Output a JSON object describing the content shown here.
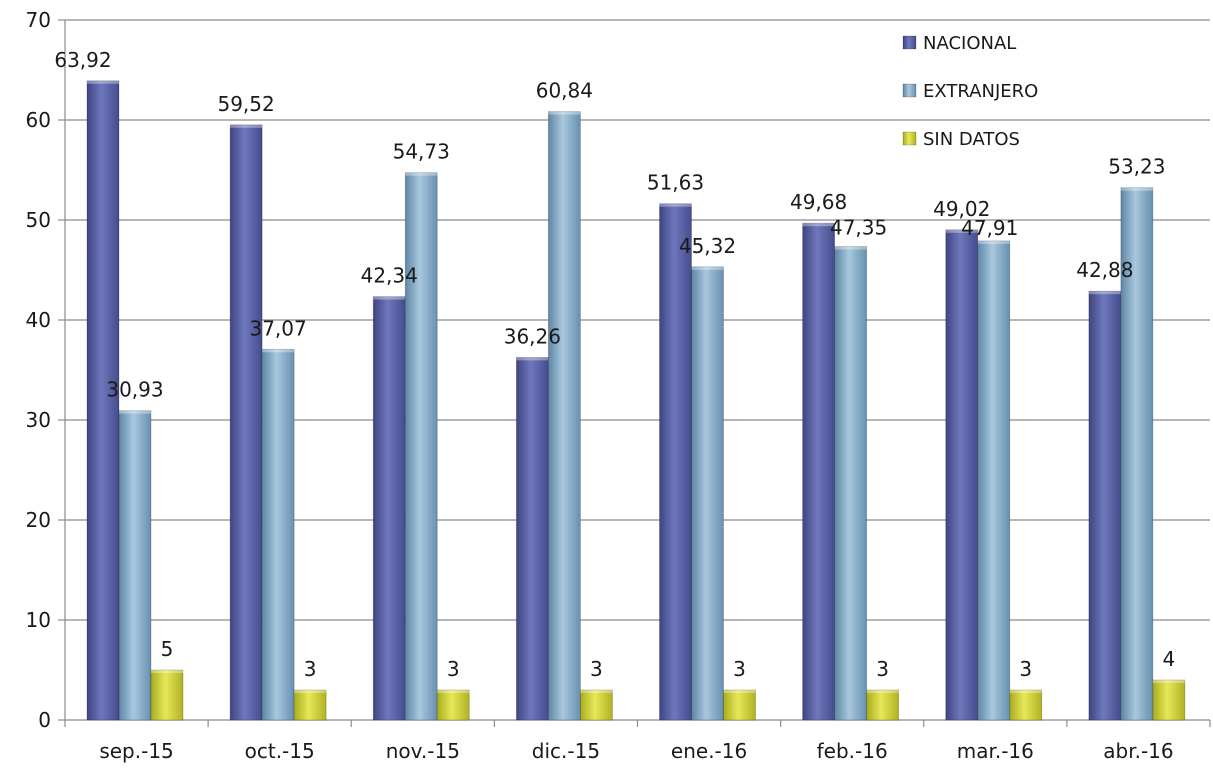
{
  "chart_data": {
    "type": "bar",
    "title": "",
    "xlabel": "",
    "ylabel": "",
    "ylim": [
      0,
      70
    ],
    "yticks": [
      0,
      10,
      20,
      30,
      40,
      50,
      60,
      70
    ],
    "grid": true,
    "legend_position": "top-right",
    "categories": [
      "sep.-15",
      "oct.-15",
      "nov.-15",
      "dic.-15",
      "ene.-16",
      "feb.-16",
      "mar.-16",
      "abr.-16"
    ],
    "series": [
      {
        "name": "NACIONAL",
        "color": "#5b63a6",
        "values": [
          63.92,
          59.52,
          42.34,
          36.26,
          51.63,
          49.68,
          49.02,
          42.88
        ],
        "labels": [
          "63,92",
          "59,52",
          "42,34",
          "36,26",
          "51,63",
          "49,68",
          "49,02",
          "42,88"
        ]
      },
      {
        "name": "EXTRANJERO",
        "color": "#7fa6c4",
        "values": [
          30.93,
          37.07,
          54.73,
          60.84,
          45.32,
          47.35,
          47.91,
          53.23
        ],
        "labels": [
          "30,93",
          "37,07",
          "54,73",
          "60,84",
          "45,32",
          "47,35",
          "47,91",
          "53,23"
        ]
      },
      {
        "name": "SIN DATOS",
        "color": "#c9cc3a",
        "values": [
          5,
          3,
          3,
          3,
          3,
          3,
          3,
          4
        ],
        "labels": [
          "5",
          "3",
          "3",
          "3",
          "3",
          "3",
          "3",
          "4"
        ]
      }
    ]
  }
}
